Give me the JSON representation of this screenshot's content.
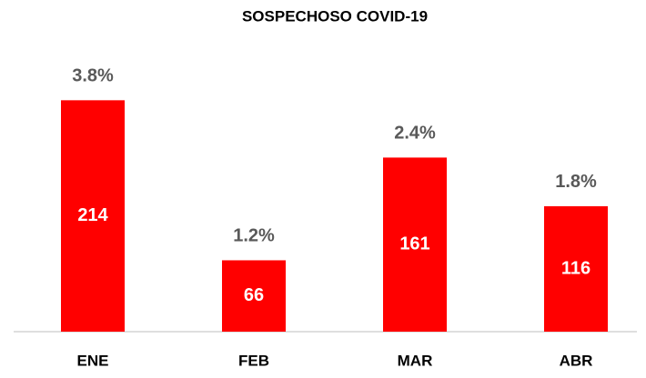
{
  "chart_data": {
    "type": "bar",
    "title": "SOSPECHOSO COVID-19",
    "categories": [
      "ENE",
      "FEB",
      "MAR",
      "ABR"
    ],
    "values": [
      214,
      66,
      161,
      116
    ],
    "annotations": [
      "3.8%",
      "1.2%",
      "2.4%",
      "1.8%"
    ],
    "color": "#ff0000",
    "ylim": [
      0,
      250
    ]
  }
}
